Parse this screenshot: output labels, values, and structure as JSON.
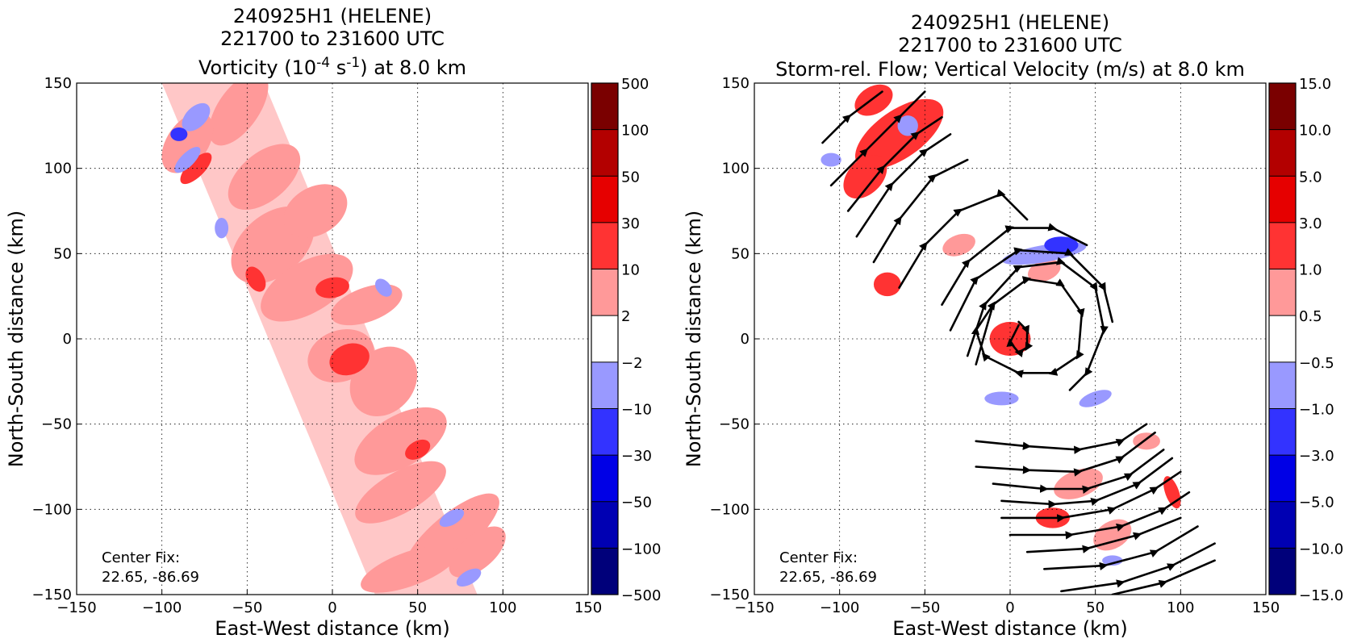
{
  "chart_data": [
    {
      "type": "heatmap",
      "title_lines": [
        "240925H1 (HELENE)",
        "221700 to 231600 UTC",
        "Vorticity (10^-4 s^-1) at 8.0 km"
      ],
      "title": {
        "line1": "240925H1 (HELENE)",
        "line2": "221700 to 231600 UTC",
        "line3_prefix": "Vorticity (10",
        "line3_exp1": "-4",
        "line3_mid": " s",
        "line3_exp2": "-1",
        "line3_suffix": ") at 8.0 km"
      },
      "xlabel": "East-West distance (km)",
      "ylabel": "North-South distance (km)",
      "xlim": [
        -150,
        150
      ],
      "ylim": [
        -150,
        150
      ],
      "xticks": [
        "−150",
        "−100",
        "−50",
        "0",
        "50",
        "100",
        "150"
      ],
      "yticks": [
        "150",
        "100",
        "50",
        "0",
        "−50",
        "−100",
        "−150"
      ],
      "grid": true,
      "annotation": [
        "Center Fix:",
        "22.65, -86.69"
      ],
      "colorbar": {
        "levels": [
          "500",
          "100",
          "50",
          "30",
          "10",
          "2",
          "−2",
          "−10",
          "−30",
          "−50",
          "−100",
          "−500"
        ],
        "colors": [
          "#7a0000",
          "#b30000",
          "#e60000",
          "#ff3333",
          "#ff9999",
          "#ffffff",
          "#9999ff",
          "#3333ff",
          "#0000e6",
          "#0000b3",
          "#00007a"
        ]
      },
      "swath": {
        "x_at_top": -70,
        "x_at_bottom": 55,
        "half_width": 30
      },
      "patches": [
        {
          "x": -55,
          "y": 135,
          "rx": 25,
          "ry": 12,
          "r": -55,
          "v": 5
        },
        {
          "x": -85,
          "y": 115,
          "rx": 20,
          "ry": 12,
          "r": -55,
          "v": 5
        },
        {
          "x": -40,
          "y": 95,
          "rx": 25,
          "ry": 14,
          "r": -40,
          "v": 5
        },
        {
          "x": -35,
          "y": 55,
          "rx": 28,
          "ry": 18,
          "r": -40,
          "v": 5
        },
        {
          "x": -10,
          "y": 75,
          "rx": 20,
          "ry": 14,
          "r": -30,
          "v": 5
        },
        {
          "x": -15,
          "y": 30,
          "rx": 30,
          "ry": 15,
          "r": -30,
          "v": 5
        },
        {
          "x": 20,
          "y": 20,
          "rx": 22,
          "ry": 10,
          "r": -20,
          "v": 5
        },
        {
          "x": 5,
          "y": -10,
          "rx": 20,
          "ry": 15,
          "r": -20,
          "v": 5
        },
        {
          "x": 30,
          "y": -25,
          "rx": 22,
          "ry": 18,
          "r": -50,
          "v": 5
        },
        {
          "x": 40,
          "y": -60,
          "rx": 30,
          "ry": 15,
          "r": -30,
          "v": 5
        },
        {
          "x": 40,
          "y": -90,
          "rx": 30,
          "ry": 12,
          "r": -30,
          "v": 5
        },
        {
          "x": 70,
          "y": -115,
          "rx": 35,
          "ry": 12,
          "r": -40,
          "v": 5
        },
        {
          "x": 45,
          "y": -135,
          "rx": 30,
          "ry": 10,
          "r": -20,
          "v": 5
        },
        {
          "x": 85,
          "y": -125,
          "rx": 20,
          "ry": 10,
          "r": -40,
          "v": 5
        },
        {
          "x": 0,
          "y": 30,
          "rx": 10,
          "ry": 6,
          "r": -10,
          "v": 15
        },
        {
          "x": 10,
          "y": -12,
          "rx": 12,
          "ry": 9,
          "r": -20,
          "v": 15
        },
        {
          "x": -45,
          "y": 35,
          "rx": 5,
          "ry": 8,
          "r": -30,
          "v": 15
        },
        {
          "x": 50,
          "y": -65,
          "rx": 8,
          "ry": 5,
          "r": -30,
          "v": 15
        },
        {
          "x": -80,
          "y": 100,
          "rx": 12,
          "ry": 5,
          "r": -45,
          "v": 15
        },
        {
          "x": -80,
          "y": 130,
          "rx": 10,
          "ry": 6,
          "r": -45,
          "v": -5
        },
        {
          "x": -85,
          "y": 105,
          "rx": 10,
          "ry": 4,
          "r": -45,
          "v": -5
        },
        {
          "x": -65,
          "y": 65,
          "rx": 4,
          "ry": 6,
          "r": 0,
          "v": -5
        },
        {
          "x": 30,
          "y": 30,
          "rx": 4,
          "ry": 6,
          "r": -40,
          "v": -5
        },
        {
          "x": 70,
          "y": -105,
          "rx": 8,
          "ry": 4,
          "r": -30,
          "v": -5
        },
        {
          "x": 80,
          "y": -140,
          "rx": 8,
          "ry": 4,
          "r": -30,
          "v": -5
        },
        {
          "x": -90,
          "y": 120,
          "rx": 5,
          "ry": 4,
          "r": 0,
          "v": -15
        }
      ],
      "streamlines": []
    },
    {
      "type": "heatmap",
      "title_lines": [
        "240925H1 (HELENE)",
        "221700 to 231600 UTC",
        "Storm-rel. Flow; Vertical Velocity (m/s) at 8.0 km"
      ],
      "title": {
        "line1": "240925H1 (HELENE)",
        "line2": "221700 to 231600 UTC",
        "line3": "Storm-rel. Flow; Vertical Velocity (m/s) at 8.0 km"
      },
      "xlabel": "East-West distance (km)",
      "ylabel": "North-South distance (km)",
      "xlim": [
        -150,
        150
      ],
      "ylim": [
        -150,
        150
      ],
      "xticks": [
        "−150",
        "−100",
        "−50",
        "0",
        "50",
        "100",
        "150"
      ],
      "yticks": [
        "150",
        "100",
        "50",
        "0",
        "−50",
        "−100",
        "−150"
      ],
      "grid": true,
      "annotation": [
        "Center Fix:",
        "22.65, -86.69"
      ],
      "colorbar": {
        "levels": [
          "15.0",
          "10.0",
          "5.0",
          "3.0",
          "1.0",
          "0.5",
          "−0.5",
          "−1.0",
          "−3.0",
          "−5.0",
          "−10.0",
          "−15.0"
        ],
        "colors": [
          "#7a0000",
          "#b30000",
          "#e60000",
          "#ff3333",
          "#ff9999",
          "#ffffff",
          "#9999ff",
          "#3333ff",
          "#0000e6",
          "#0000b3",
          "#00007a"
        ]
      },
      "swath": null,
      "patches": [
        {
          "x": -65,
          "y": 120,
          "rx": 30,
          "ry": 14,
          "r": -35,
          "v": 2
        },
        {
          "x": -85,
          "y": 95,
          "rx": 15,
          "ry": 10,
          "r": -45,
          "v": 2
        },
        {
          "x": -80,
          "y": 140,
          "rx": 12,
          "ry": 8,
          "r": -30,
          "v": 2
        },
        {
          "x": -72,
          "y": 32,
          "rx": 8,
          "ry": 7,
          "r": 0,
          "v": 2
        },
        {
          "x": 0,
          "y": 0,
          "rx": 12,
          "ry": 10,
          "r": 0,
          "v": 2
        },
        {
          "x": 20,
          "y": 40,
          "rx": 10,
          "ry": 6,
          "r": -20,
          "v": 0.7
        },
        {
          "x": -30,
          "y": 55,
          "rx": 10,
          "ry": 6,
          "r": -20,
          "v": 0.7
        },
        {
          "x": 40,
          "y": -85,
          "rx": 15,
          "ry": 8,
          "r": -20,
          "v": 0.7
        },
        {
          "x": 60,
          "y": -115,
          "rx": 12,
          "ry": 8,
          "r": -30,
          "v": 0.7
        },
        {
          "x": 25,
          "y": -105,
          "rx": 10,
          "ry": 6,
          "r": 0,
          "v": 2
        },
        {
          "x": 95,
          "y": -90,
          "rx": 4,
          "ry": 10,
          "r": -20,
          "v": 2
        },
        {
          "x": 80,
          "y": -60,
          "rx": 8,
          "ry": 5,
          "r": 0,
          "v": 0.7
        },
        {
          "x": 20,
          "y": 50,
          "rx": 25,
          "ry": 5,
          "r": -10,
          "v": -0.7
        },
        {
          "x": 30,
          "y": 55,
          "rx": 10,
          "ry": 5,
          "r": 0,
          "v": -2
        },
        {
          "x": -60,
          "y": 125,
          "rx": 6,
          "ry": 6,
          "r": 0,
          "v": -0.7
        },
        {
          "x": -105,
          "y": 105,
          "rx": 6,
          "ry": 4,
          "r": 0,
          "v": -0.7
        },
        {
          "x": -5,
          "y": -35,
          "rx": 10,
          "ry": 4,
          "r": 0,
          "v": -0.7
        },
        {
          "x": 50,
          "y": -35,
          "rx": 10,
          "ry": 4,
          "r": -20,
          "v": -0.7
        },
        {
          "x": 60,
          "y": -130,
          "rx": 6,
          "ry": 3,
          "r": 0,
          "v": -0.7
        }
      ],
      "streamlines": [
        [
          [
            -110,
            115
          ],
          [
            -95,
            130
          ],
          [
            -75,
            145
          ]
        ],
        [
          [
            -105,
            90
          ],
          [
            -85,
            110
          ],
          [
            -65,
            130
          ],
          [
            -50,
            145
          ]
        ],
        [
          [
            -95,
            75
          ],
          [
            -75,
            100
          ],
          [
            -55,
            120
          ],
          [
            -40,
            130
          ]
        ],
        [
          [
            -90,
            60
          ],
          [
            -70,
            90
          ],
          [
            -50,
            110
          ],
          [
            -35,
            120
          ]
        ],
        [
          [
            -80,
            45
          ],
          [
            -65,
            70
          ],
          [
            -45,
            95
          ],
          [
            -25,
            105
          ]
        ],
        [
          [
            -65,
            30
          ],
          [
            -50,
            55
          ],
          [
            -30,
            75
          ],
          [
            -5,
            85
          ],
          [
            10,
            70
          ]
        ],
        [
          [
            -40,
            20
          ],
          [
            -25,
            45
          ],
          [
            0,
            65
          ],
          [
            25,
            65
          ],
          [
            45,
            55
          ]
        ],
        [
          [
            -35,
            5
          ],
          [
            -20,
            35
          ],
          [
            5,
            52
          ],
          [
            35,
            50
          ],
          [
            55,
            30
          ],
          [
            60,
            10
          ]
        ],
        [
          [
            -25,
            -10
          ],
          [
            -15,
            20
          ],
          [
            5,
            42
          ],
          [
            30,
            45
          ],
          [
            50,
            30
          ],
          [
            55,
            5
          ],
          [
            45,
            -20
          ],
          [
            35,
            -30
          ]
        ],
        [
          [
            -20,
            -15
          ],
          [
            -10,
            20
          ],
          [
            10,
            35
          ],
          [
            30,
            32
          ],
          [
            42,
            15
          ],
          [
            40,
            -10
          ],
          [
            25,
            -20
          ],
          [
            5,
            -20
          ],
          [
            -15,
            -10
          ],
          [
            -20,
            5
          ],
          [
            -10,
            20
          ]
        ],
        [
          [
            5,
            10
          ],
          [
            10,
            5
          ],
          [
            10,
            -5
          ],
          [
            5,
            -8
          ],
          [
            0,
            -2
          ],
          [
            5,
            8
          ]
        ],
        [
          [
            -20,
            -60
          ],
          [
            10,
            -63
          ],
          [
            40,
            -65
          ],
          [
            65,
            -60
          ],
          [
            80,
            -50
          ]
        ],
        [
          [
            -20,
            -75
          ],
          [
            10,
            -77
          ],
          [
            40,
            -78
          ],
          [
            65,
            -70
          ],
          [
            85,
            -55
          ]
        ],
        [
          [
            -10,
            -85
          ],
          [
            20,
            -88
          ],
          [
            45,
            -88
          ],
          [
            70,
            -80
          ],
          [
            90,
            -65
          ]
        ],
        [
          [
            -5,
            -95
          ],
          [
            25,
            -97
          ],
          [
            50,
            -95
          ],
          [
            75,
            -85
          ],
          [
            95,
            -70
          ]
        ],
        [
          [
            -5,
            -105
          ],
          [
            30,
            -105
          ],
          [
            60,
            -100
          ],
          [
            85,
            -88
          ],
          [
            100,
            -78
          ]
        ],
        [
          [
            0,
            -115
          ],
          [
            35,
            -115
          ],
          [
            65,
            -110
          ],
          [
            90,
            -100
          ],
          [
            105,
            -90
          ]
        ],
        [
          [
            10,
            -125
          ],
          [
            45,
            -123
          ],
          [
            75,
            -115
          ],
          [
            100,
            -105
          ]
        ],
        [
          [
            20,
            -135
          ],
          [
            55,
            -133
          ],
          [
            85,
            -125
          ],
          [
            110,
            -110
          ]
        ],
        [
          [
            30,
            -148
          ],
          [
            65,
            -143
          ],
          [
            95,
            -133
          ],
          [
            120,
            -120
          ]
        ],
        [
          [
            60,
            -150
          ],
          [
            90,
            -143
          ],
          [
            120,
            -130
          ]
        ]
      ]
    }
  ]
}
